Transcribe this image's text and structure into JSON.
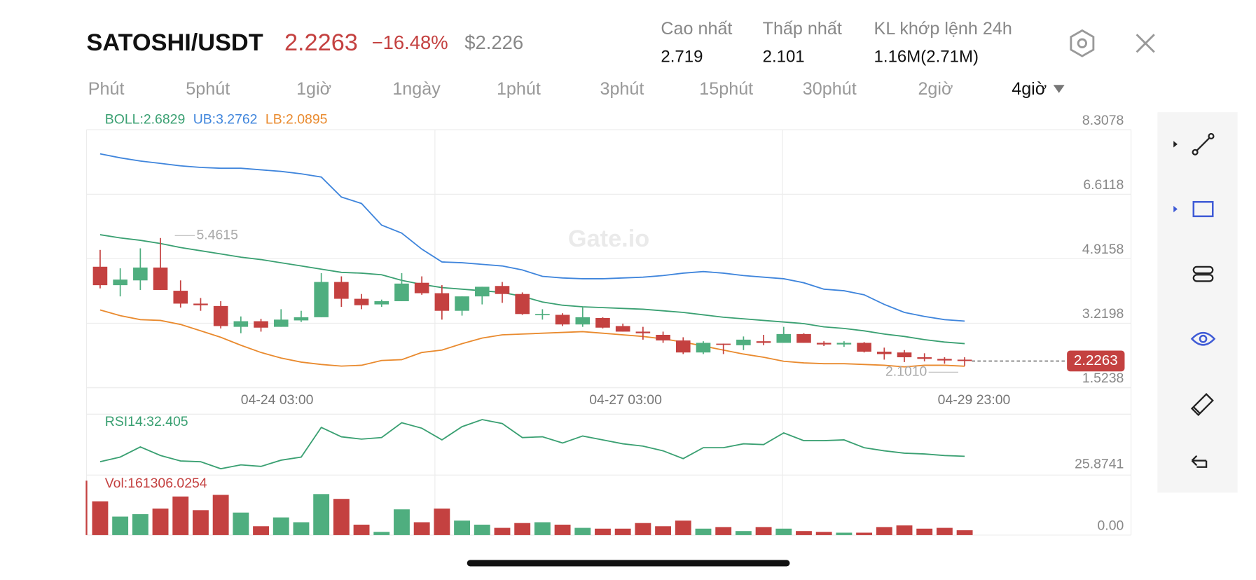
{
  "header": {
    "pair": "SATOSHI/USDT",
    "price": "2.2263",
    "change": "−16.48%",
    "usd": "$2.226",
    "stats": [
      {
        "label": "Cao nhất",
        "value": "2.719"
      },
      {
        "label": "Thấp nhất",
        "value": "2.101"
      },
      {
        "label": "KL khớp lệnh 24h",
        "value": "1.16M(2.71M)"
      }
    ]
  },
  "tabs": [
    {
      "label": "Phút"
    },
    {
      "label": "5phút"
    },
    {
      "label": "1giờ"
    },
    {
      "label": "1ngày"
    },
    {
      "label": "1phút"
    },
    {
      "label": "3phút"
    },
    {
      "label": "15phút"
    },
    {
      "label": "30phút"
    },
    {
      "label": "2giờ"
    },
    {
      "label": "4giờ",
      "active": true
    }
  ],
  "watermark": "Gate.io",
  "chart_data": [
    {
      "type": "candlestick",
      "up_color": "#4fae7f",
      "down_color": "#c44140",
      "ylim": [
        1.5238,
        8.3078
      ],
      "yticks": [
        8.3078,
        6.6118,
        4.9158,
        3.2198,
        1.5238
      ],
      "grid": true,
      "x_labels": [
        "04-24 03:00",
        "04-27 03:00",
        "04-29 23:00"
      ],
      "open": [
        4.706,
        4.221,
        4.347,
        4.685,
        4.074,
        3.736,
        3.673,
        3.125,
        3.273,
        3.125,
        3.294,
        3.378,
        4.305,
        3.863,
        3.715,
        3.8,
        4.284,
        4.01,
        3.547,
        3.926,
        4.2,
        3.989,
        3.441,
        3.441,
        3.188,
        3.357,
        3.146,
        2.999,
        2.915,
        2.767,
        2.451,
        2.683,
        2.641,
        2.746,
        2.704,
        2.936,
        2.704,
        2.662,
        2.704,
        2.472,
        2.451,
        2.325,
        2.283,
        2.262
      ],
      "high": [
        5.148,
        4.664,
        5.19,
        5.4615,
        4.347,
        3.884,
        3.8,
        3.399,
        3.336,
        3.589,
        3.547,
        4.537,
        4.453,
        3.989,
        3.842,
        4.537,
        4.453,
        4.221,
        3.926,
        4.179,
        4.305,
        4.031,
        3.589,
        3.483,
        3.652,
        3.378,
        3.21,
        3.125,
        2.999,
        2.851,
        2.746,
        2.683,
        2.872,
        2.915,
        3.125,
        2.957,
        2.746,
        2.746,
        2.725,
        2.578,
        2.514,
        2.43,
        2.325,
        2.325
      ],
      "low": [
        4.137,
        3.926,
        4.095,
        4.095,
        3.631,
        3.547,
        3.083,
        2.957,
        2.999,
        3.125,
        3.252,
        3.378,
        3.652,
        3.589,
        3.652,
        3.8,
        3.968,
        3.315,
        3.42,
        3.715,
        3.757,
        3.441,
        3.315,
        3.146,
        3.125,
        3.083,
        2.999,
        2.788,
        2.704,
        2.409,
        2.409,
        2.409,
        2.514,
        2.641,
        2.704,
        2.704,
        2.62,
        2.599,
        2.451,
        2.262,
        2.198,
        2.219,
        2.156,
        2.101
      ],
      "close": [
        4.221,
        4.368,
        4.685,
        4.095,
        3.736,
        3.694,
        3.146,
        3.273,
        3.104,
        3.315,
        3.378,
        4.305,
        3.863,
        3.694,
        3.8,
        4.263,
        4.01,
        3.547,
        3.926,
        4.179,
        3.989,
        3.462,
        3.462,
        3.188,
        3.378,
        3.104,
        2.999,
        2.957,
        2.767,
        2.451,
        2.704,
        2.662,
        2.788,
        2.704,
        2.936,
        2.704,
        2.662,
        2.704,
        2.472,
        2.409,
        2.325,
        2.283,
        2.24,
        2.2263
      ],
      "series": [
        {
          "name": "BOLL:2.6829",
          "color": "#3aa072",
          "values": [
            5.548,
            5.464,
            5.401,
            5.317,
            5.211,
            5.127,
            5.043,
            4.958,
            4.895,
            4.811,
            4.727,
            4.642,
            4.558,
            4.537,
            4.495,
            4.347,
            4.242,
            4.158,
            4.116,
            4.074,
            4.031,
            3.926,
            3.778,
            3.694,
            3.652,
            3.631,
            3.61,
            3.589,
            3.547,
            3.505,
            3.441,
            3.378,
            3.336,
            3.294,
            3.252,
            3.21,
            3.125,
            3.083,
            3.02,
            2.936,
            2.872,
            2.788,
            2.725,
            2.6829
          ]
        },
        {
          "name": "UB:3.2762",
          "color": "#3f85dc",
          "values": [
            7.676,
            7.571,
            7.487,
            7.424,
            7.36,
            7.318,
            7.297,
            7.297,
            7.255,
            7.213,
            7.15,
            7.065,
            6.539,
            6.37,
            5.801,
            5.591,
            5.169,
            4.832,
            4.811,
            4.769,
            4.727,
            4.621,
            4.453,
            4.411,
            4.39,
            4.39,
            4.411,
            4.432,
            4.474,
            4.537,
            4.579,
            4.537,
            4.474,
            4.432,
            4.39,
            4.284,
            4.116,
            4.074,
            3.968,
            3.715,
            3.505,
            3.399,
            3.315,
            3.2762
          ]
        },
        {
          "name": "LB:2.0895",
          "color": "#e98a2e",
          "values": [
            3.568,
            3.42,
            3.315,
            3.294,
            3.188,
            3.02,
            2.851,
            2.641,
            2.451,
            2.304,
            2.198,
            2.135,
            2.093,
            2.114,
            2.24,
            2.262,
            2.451,
            2.514,
            2.683,
            2.83,
            2.915,
            2.936,
            2.957,
            2.978,
            2.999,
            2.957,
            2.915,
            2.872,
            2.809,
            2.725,
            2.62,
            2.514,
            2.409,
            2.325,
            2.219,
            2.177,
            2.156,
            2.156,
            2.135,
            2.114,
            2.072,
            2.114,
            2.114,
            2.0895
          ]
        }
      ],
      "max_label": "5.4615",
      "min_label": "2.1010",
      "last_label": "2.2263"
    },
    {
      "type": "line",
      "ylim": [
        25.8741,
        48.45
      ],
      "yticks": [
        25.8741
      ],
      "series": [
        {
          "name": "RSI14:32.405",
          "color": "#3aa072",
          "values": [
            30.33,
            32.11,
            35.97,
            32.7,
            30.63,
            30.33,
            27.66,
            29.14,
            28.55,
            30.92,
            32.11,
            43.4,
            39.83,
            38.94,
            39.54,
            45.18,
            43.1,
            38.65,
            43.69,
            46.37,
            44.88,
            39.54,
            39.83,
            37.46,
            40.13,
            38.65,
            37.16,
            36.27,
            34.49,
            31.52,
            35.68,
            35.68,
            37.16,
            36.86,
            41.32,
            38.35,
            38.35,
            38.65,
            35.68,
            34.49,
            33.59,
            33.3,
            32.7,
            32.405
          ]
        }
      ]
    },
    {
      "type": "bar",
      "ylim": [
        0,
        1900000
      ],
      "yticks": [
        {
          "value": 0,
          "label": "0.00"
        }
      ],
      "series": [
        {
          "name": "Vol:161306.0254",
          "color": "#c44140",
          "values": [
            1129000,
            618000,
            699000,
            887000,
            1290000,
            833000,
            1344000,
            753000,
            296000,
            591000,
            430000,
            1371000,
            1210000,
            349000,
            108000,
            860000,
            430000,
            887000,
            484000,
            349000,
            242000,
            403000,
            430000,
            349000,
            242000,
            215000,
            215000,
            403000,
            296000,
            484000,
            215000,
            269000,
            134000,
            269000,
            215000,
            134000,
            108000,
            81000,
            81000,
            269000,
            323000,
            215000,
            242000,
            161306.0254
          ]
        }
      ]
    }
  ]
}
